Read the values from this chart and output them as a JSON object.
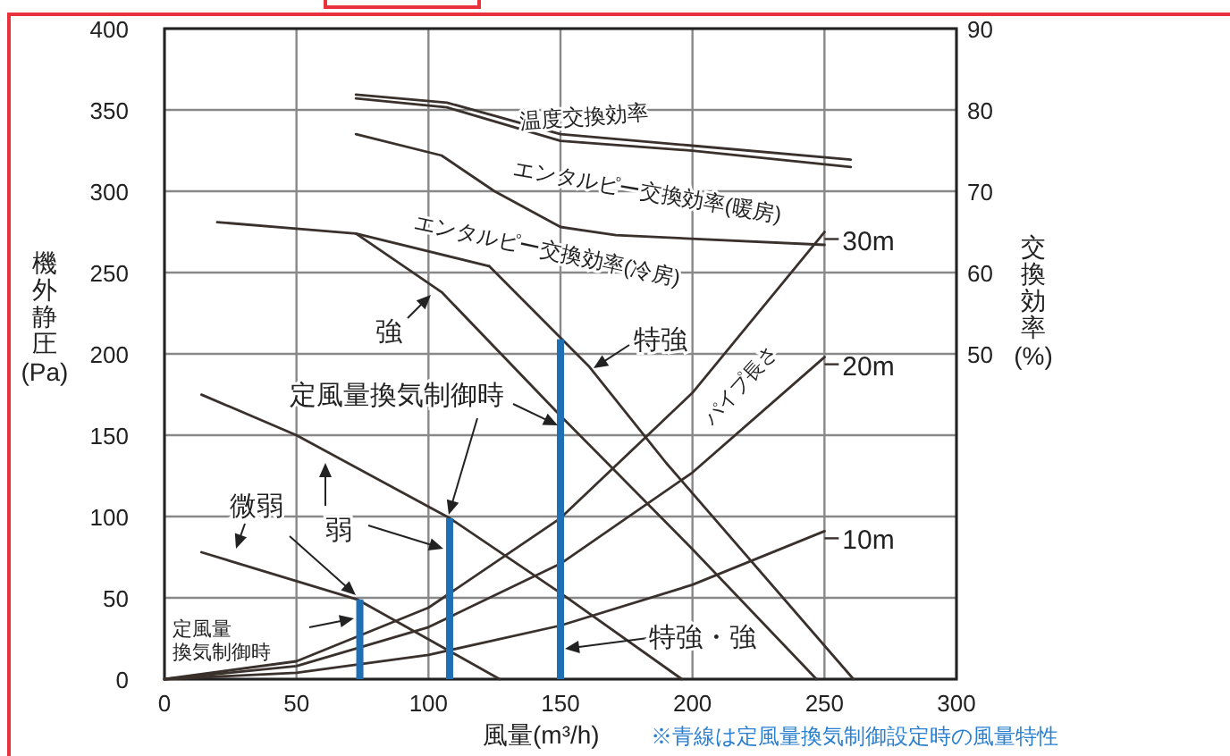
{
  "chart_data": {
    "type": "line",
    "xlabel": "風量(m³/h)",
    "ylabel": "機外静圧(Pa)",
    "y2label": "交換効率(%)",
    "xlim": [
      0,
      300
    ],
    "xticks": [
      0,
      50,
      100,
      150,
      200,
      250,
      300
    ],
    "ylim": [
      0,
      400
    ],
    "yticks": [
      0,
      50,
      100,
      150,
      200,
      250,
      300,
      350,
      400
    ],
    "y2lim": [
      10,
      90
    ],
    "y2ticks": [
      50,
      60,
      70,
      80,
      90
    ],
    "grid": true,
    "legend": "right",
    "series": [
      {
        "axis": "y2",
        "color": "#3a302c",
        "x": [
          72.5,
          107,
          150,
          200,
          260
        ],
        "values": [
          81.9,
          80.9,
          77.0,
          75.6,
          73.9
        ]
      },
      {
        "axis": "y2",
        "color": "#3a302c",
        "x": [
          72.5,
          107,
          150,
          200,
          260
        ],
        "values": [
          81.4,
          80.3,
          76.2,
          75.0,
          73.0
        ]
      },
      {
        "axis": "y2",
        "color": "#3a302c",
        "x": [
          72.5,
          105,
          125,
          150,
          171,
          250
        ],
        "values": [
          77.0,
          74.4,
          70.0,
          65.6,
          64.6,
          63.4
        ]
      },
      {
        "axis": "y2",
        "color": "#3a302c",
        "x": [
          20,
          72.5,
          123
        ],
        "values": [
          66.2,
          64.8,
          60.8
        ]
      },
      {
        "color": "#3a302c",
        "x": [
          123,
          161,
          190,
          261
        ],
        "values": [
          254,
          192,
          133,
          0
        ]
      },
      {
        "color": "#3a302c",
        "x": [
          72.5,
          105,
          150,
          200,
          247
        ],
        "values": [
          274,
          238,
          162,
          80,
          0
        ]
      },
      {
        "color": "#3a302c",
        "x": [
          14,
          50,
          108,
          150,
          196
        ],
        "values": [
          175,
          150,
          99,
          53,
          0
        ]
      },
      {
        "color": "#3a302c",
        "x": [
          14,
          73,
          127
        ],
        "values": [
          78,
          49,
          0
        ]
      },
      {
        "name": "30m",
        "color": "#3a302c",
        "x": [
          0,
          50,
          100,
          150,
          200,
          250
        ],
        "values": [
          0,
          11,
          44,
          99,
          176,
          275
        ]
      },
      {
        "name": "20m",
        "color": "#3a302c",
        "x": [
          0,
          50,
          100,
          150,
          200,
          250
        ],
        "values": [
          0,
          8,
          32,
          71,
          127,
          198
        ]
      },
      {
        "name": "10m",
        "color": "#3a302c",
        "x": [
          0,
          50,
          100,
          150,
          200,
          250
        ],
        "values": [
          0,
          4,
          15,
          33,
          58,
          91
        ]
      },
      {
        "type": "bar",
        "color": "#1f6fb5",
        "x": [
          74,
          108,
          150
        ],
        "values": [
          49,
          99,
          209
        ]
      }
    ],
    "annotations": [
      "温度交換効率",
      "エンタルピー交換効率(暖房)",
      "エンタルピー交換効率(冷房)",
      "強",
      "特強",
      "定風量換気制御時",
      "微弱",
      "弱",
      "定風量換気制御時",
      "特強・強",
      "パイプ長さ",
      "※青線は定風量換気制御設定時の風量特性"
    ]
  }
}
